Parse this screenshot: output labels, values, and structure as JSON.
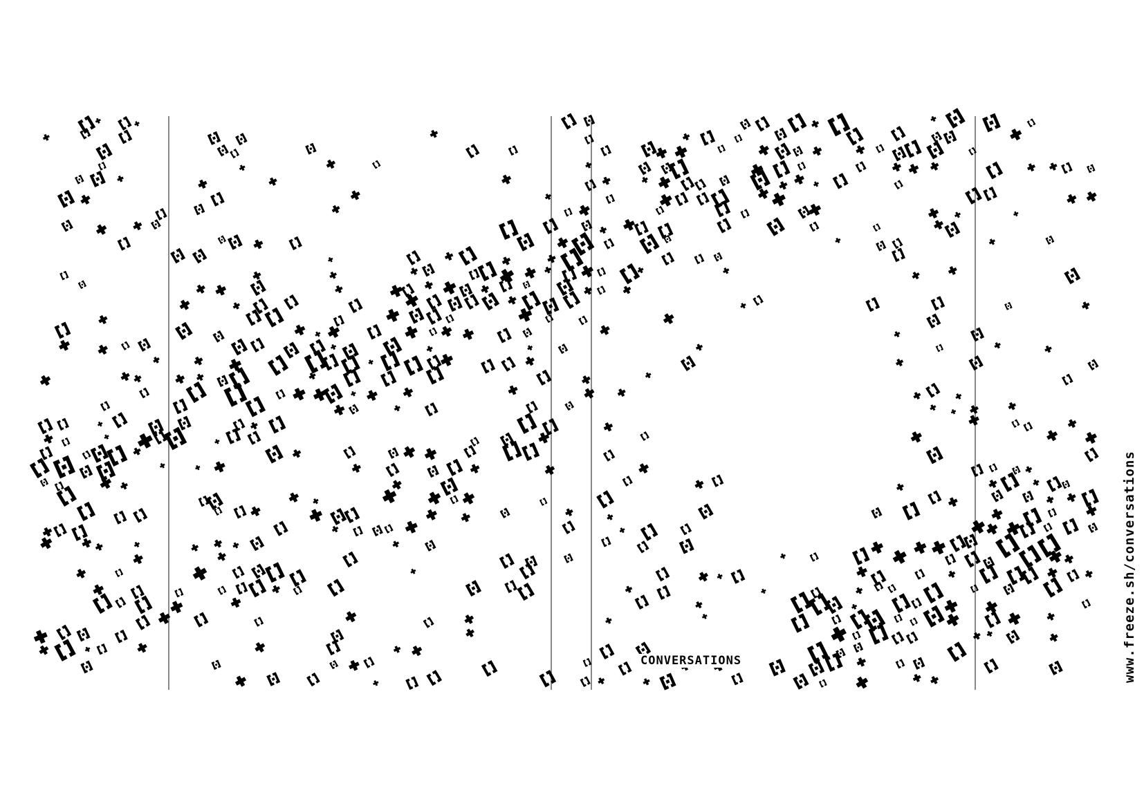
{
  "poster": {
    "caption": "CONVERSATIONS",
    "url": "www.freeze.sh/conversations"
  },
  "colors": {
    "ink": "#000000",
    "paper": "#ffffff",
    "rule": "#555555"
  }
}
